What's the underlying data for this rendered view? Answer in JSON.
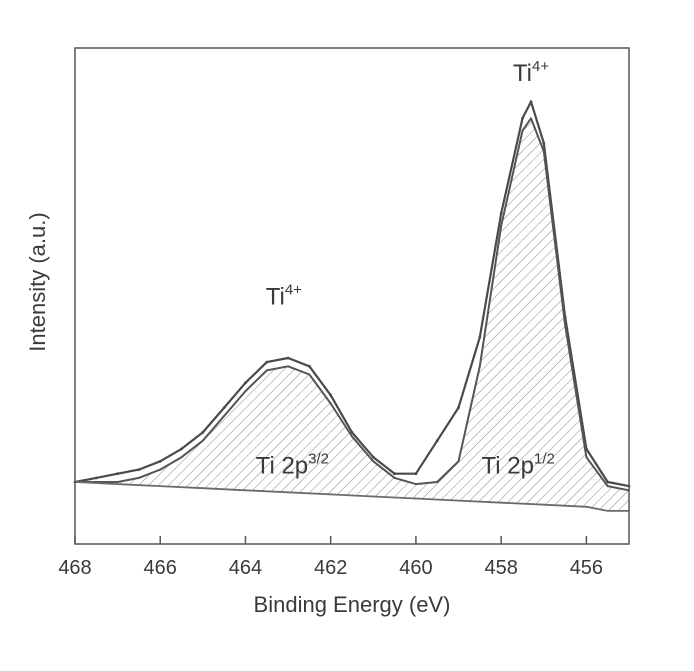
{
  "chart_data": {
    "type": "line",
    "title": "",
    "xlabel": "Binding Energy (eV)",
    "ylabel": "Intensity (a.u.)",
    "x_reversed": true,
    "xlim": [
      468,
      455
    ],
    "ylim": [
      -0.15,
      1.05
    ],
    "xticks": [
      468,
      466,
      464,
      462,
      460,
      458,
      456
    ],
    "yticks_shown": false,
    "grid": false,
    "legend": "none",
    "annotations": [
      {
        "base": "Ti",
        "sup": "4+",
        "x": 463.1,
        "y": 0.43
      },
      {
        "base": "Ti",
        "sup": "4+",
        "x": 457.3,
        "y": 0.97
      },
      {
        "base": "Ti 2p",
        "sup": "3/2",
        "x": 462.9,
        "y": 0.02
      },
      {
        "base": "Ti 2p",
        "sup": "1/2",
        "x": 457.6,
        "y": 0.02
      }
    ],
    "series": [
      {
        "x": [
          468,
          467.5,
          467,
          466.5,
          466,
          465.5,
          465,
          464.5,
          464,
          463.5,
          463,
          462.5,
          462,
          461.5,
          461,
          460.5,
          460,
          459.5,
          459,
          458.5,
          458,
          457.5,
          457.3,
          457,
          456.5,
          456,
          455.5,
          455
        ],
        "y": [
          0.0,
          0.01,
          0.02,
          0.03,
          0.05,
          0.08,
          0.12,
          0.18,
          0.24,
          0.29,
          0.3,
          0.28,
          0.21,
          0.12,
          0.06,
          0.02,
          0.02,
          0.1,
          0.18,
          0.35,
          0.65,
          0.88,
          0.92,
          0.82,
          0.4,
          0.08,
          0.0,
          -0.01
        ]
      },
      {
        "x": [
          468,
          467.5,
          467,
          466.5,
          466,
          465.5,
          465,
          464.5,
          464,
          463.5,
          463,
          462.5,
          462,
          461.5,
          461,
          460.5,
          460,
          459.5,
          459,
          458.5,
          458,
          457.5,
          457.3,
          457,
          456.5,
          456,
          455.5,
          455
        ],
        "y": [
          0.0,
          0.0,
          0.0,
          0.01,
          0.03,
          0.06,
          0.1,
          0.16,
          0.22,
          0.27,
          0.28,
          0.26,
          0.19,
          0.11,
          0.05,
          0.01,
          -0.005,
          0.0,
          0.05,
          0.28,
          0.62,
          0.85,
          0.88,
          0.8,
          0.38,
          0.06,
          -0.01,
          -0.02
        ]
      },
      {
        "x": [
          468,
          467,
          466,
          465,
          464,
          463,
          462,
          461,
          460,
          459,
          458,
          457,
          456,
          455.5,
          455
        ],
        "y": [
          0.0,
          -0.005,
          -0.01,
          -0.015,
          -0.02,
          -0.025,
          -0.03,
          -0.035,
          -0.04,
          -0.045,
          -0.05,
          -0.055,
          -0.06,
          -0.07,
          -0.07
        ]
      }
    ]
  }
}
